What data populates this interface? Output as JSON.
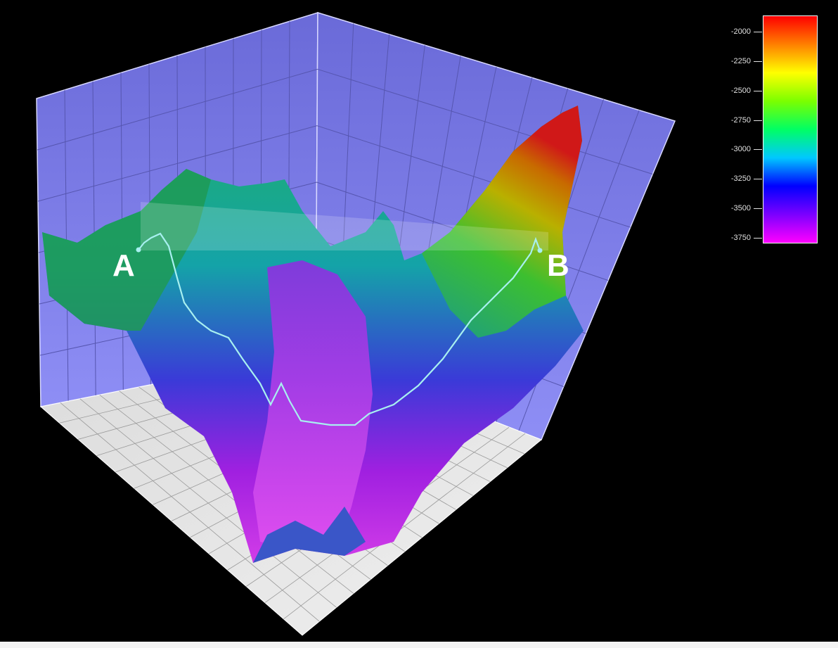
{
  "chart_data": {
    "type": "surface-3d",
    "title": "",
    "colorbar": {
      "ticks": [
        -2000,
        -2250,
        -2500,
        -2750,
        -3000,
        -3250,
        -3500,
        -3750
      ],
      "tick_labels": [
        "-2000",
        "-2250",
        "-2500",
        "-2750",
        "-3000",
        "-3250",
        "-3500",
        "-3750"
      ],
      "range": [
        -3800,
        -1860
      ],
      "colormap": [
        "#ff00ff",
        "#7b00ff",
        "#0000ff",
        "#00c8ff",
        "#00ff64",
        "#7bff00",
        "#ffff00",
        "#ff8000",
        "#ff0000"
      ]
    },
    "profile": {
      "start_label": "A",
      "end_label": "B",
      "line_color": "#a8f0f0"
    },
    "walls_color": "#7b7bff",
    "floor_color": "#e6e6e6",
    "grid": true
  }
}
